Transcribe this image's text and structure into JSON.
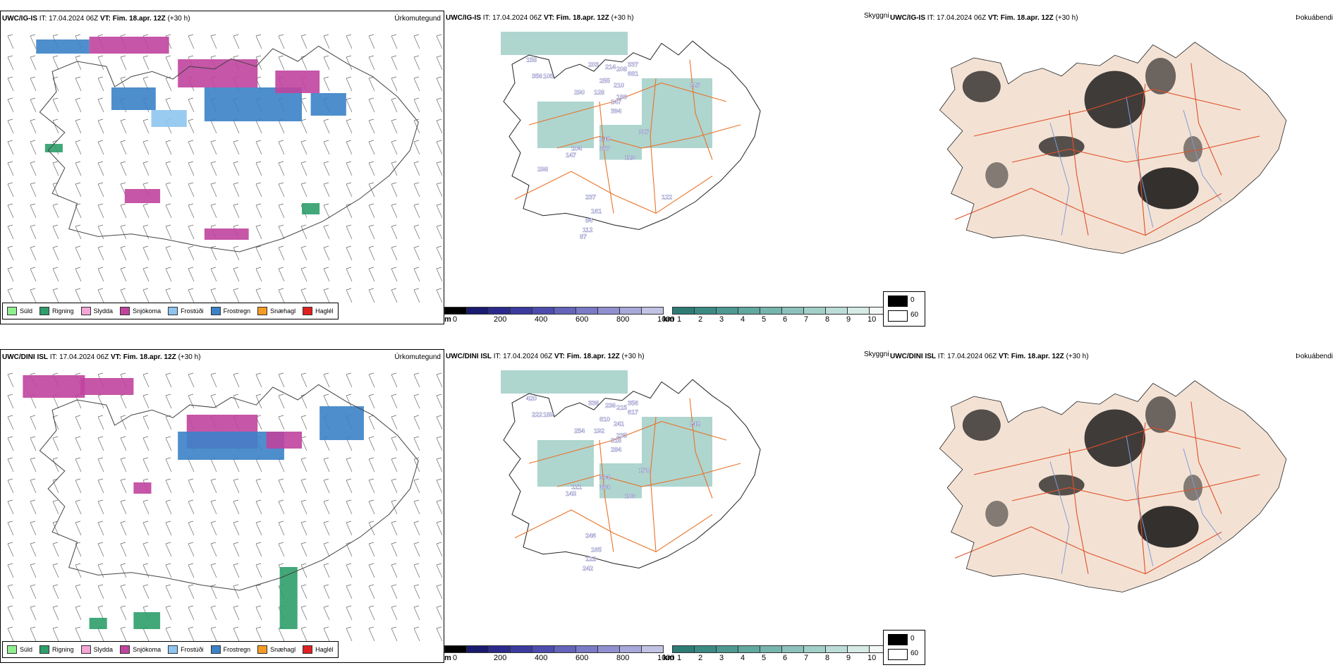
{
  "rows": [
    {
      "model": "UWC/IG-IS",
      "it_label": "IT:",
      "it_value": "17.04.2024 06Z",
      "vt_label": "VT:",
      "vt_value": "Fim. 18.apr. 12Z",
      "lead": "(+30 h)",
      "vis_numbers": [
        "158",
        "356",
        "105",
        "203",
        "214",
        "208",
        "337",
        "681",
        "255",
        "210",
        "128",
        "186",
        "290",
        "147",
        "227",
        "394",
        "148",
        "367",
        "129",
        "327",
        "104",
        "147",
        "237",
        "161",
        "84",
        "112",
        "87",
        "122",
        "298"
      ]
    },
    {
      "model": "UWC/DINI ISL",
      "it_label": "IT:",
      "it_value": "17.04.2024 06Z",
      "vt_label": "VT:",
      "vt_value": "Fim. 18.apr. 12Z",
      "lead": "(+30 h)",
      "vis_numbers": [
        "420",
        "222",
        "189",
        "338",
        "236",
        "215",
        "356",
        "617",
        "810",
        "241",
        "192",
        "235",
        "254",
        "318",
        "242",
        "284",
        "304",
        "364",
        "103",
        "178",
        "121",
        "143",
        "246",
        "165",
        "122",
        "242"
      ]
    }
  ],
  "panel_labels": {
    "precip": "Úrkomutegund",
    "vis": "Skyggni",
    "fog": "Þokuábendi"
  },
  "precip_legend": [
    {
      "label": "Súld",
      "color": "#90ee90"
    },
    {
      "label": "Rigning",
      "color": "#2e9e6a"
    },
    {
      "label": "Slydda",
      "color": "#f4a6d7"
    },
    {
      "label": "Snjókoma",
      "color": "#c0449e"
    },
    {
      "label": "Frostúði",
      "color": "#8ec5f0"
    },
    {
      "label": "Frostregn",
      "color": "#3b82c8"
    },
    {
      "label": "Snæhagl",
      "color": "#f59a23"
    },
    {
      "label": "Haglél",
      "color": "#e02020"
    }
  ],
  "elev_bar": {
    "unit": "m",
    "ticks": [
      "0",
      "200",
      "400",
      "600",
      "800",
      "1000"
    ],
    "colors": [
      "#000000",
      "#1a1a6e",
      "#2a2a8c",
      "#3b3ba0",
      "#4d4dae",
      "#6464bb",
      "#7a7ac6",
      "#9090d0",
      "#a8a8da",
      "#c2c2e5"
    ]
  },
  "km_bar": {
    "unit": "km",
    "ticks": [
      "1",
      "2",
      "3",
      "4",
      "5",
      "6",
      "7",
      "8",
      "9",
      "10"
    ],
    "colors": [
      "#2e7b76",
      "#3b8a84",
      "#4d9992",
      "#60a8a0",
      "#76b5ae",
      "#8cc2bb",
      "#a3cfc9",
      "#bcdcd7",
      "#d6eae6",
      "#f2f8f6"
    ]
  },
  "fog_legend": [
    {
      "label": "0",
      "color": "#000000"
    },
    {
      "label": "60",
      "color": "#ffffff"
    }
  ],
  "colors": {
    "road": "#e8742a",
    "coast": "#222222",
    "fog_land": "#f3e2d4",
    "fog_road": "#e0502a",
    "fog_river": "#7f9bd8",
    "vis_fill": "#6db3a8",
    "snow": "#c0449e",
    "frost": "#3b82c8",
    "frostlight": "#8ec5f0",
    "rain": "#2e9e6a"
  }
}
